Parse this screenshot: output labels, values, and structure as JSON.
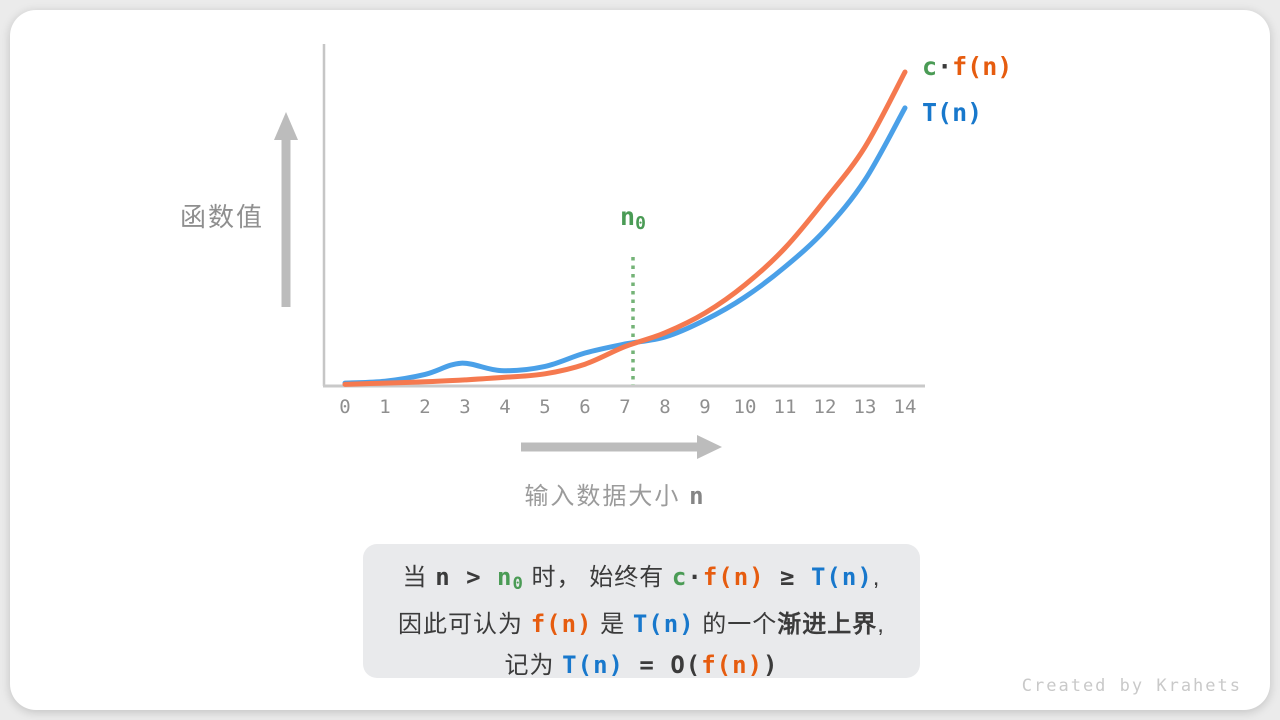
{
  "colors": {
    "orange": "#f5794f",
    "blue": "#4aa0e8",
    "text_orange": "#e65c0f",
    "text_blue": "#1878cc",
    "green": "#4a9b55",
    "n0_line": "#74b377",
    "axis_gray": "#c6c6c6",
    "arrow_gray": "#bcbcbc",
    "label_gray": "#8f8f8f",
    "dark_text": "#3b3b3b",
    "caption_bg": "#e9eaec",
    "watermark_gray": "#c9c9c9"
  },
  "chart_data": {
    "type": "line",
    "title": "",
    "ylabel": "函数值",
    "xlabel_segments": [
      [
        "输入数据大小 ",
        "xl"
      ],
      [
        "n",
        "xn"
      ]
    ],
    "x_ticks": [
      "0",
      "1",
      "2",
      "3",
      "4",
      "5",
      "6",
      "7",
      "8",
      "9",
      "10",
      "11",
      "12",
      "13",
      "14"
    ],
    "xlim": [
      0,
      14
    ],
    "ylim": [
      0,
      10.6
    ],
    "grid": false,
    "legend_position": "right-of-curve-ends",
    "series": [
      {
        "name": "c·f(n)",
        "name_segments": [
          [
            "c",
            "g"
          ],
          [
            "·",
            "m"
          ],
          [
            "f(n)",
            "o"
          ]
        ],
        "color_key": "orange",
        "x": [
          0,
          1,
          2,
          3,
          4,
          5,
          6,
          7,
          8,
          9,
          10,
          11,
          12,
          13,
          14
        ],
        "values": [
          0.02,
          0.06,
          0.1,
          0.16,
          0.24,
          0.35,
          0.65,
          1.2,
          1.63,
          2.25,
          3.13,
          4.28,
          5.78,
          7.44,
          9.78
        ]
      },
      {
        "name": "T(n)",
        "name_segments": [
          [
            "T(n)",
            "b"
          ]
        ],
        "color_key": "blue",
        "x": [
          0,
          1,
          2,
          2.9,
          3.9,
          5,
          6,
          7,
          8,
          9,
          10,
          11,
          12,
          13,
          14
        ],
        "values": [
          0.06,
          0.12,
          0.33,
          0.68,
          0.45,
          0.58,
          1.0,
          1.28,
          1.5,
          2.03,
          2.75,
          3.69,
          4.84,
          6.41,
          8.66
        ]
      }
    ],
    "annotation": {
      "n0": 7.2,
      "line_top_value": 4.0,
      "label_segments": [
        [
          "n",
          "g"
        ],
        [
          "0",
          "gs"
        ]
      ]
    }
  },
  "caption": {
    "lines": [
      [
        [
          "当 ",
          "t"
        ],
        [
          "n",
          "m"
        ],
        [
          " > ",
          "m"
        ],
        [
          "n",
          "g"
        ],
        [
          "0",
          "gs"
        ],
        [
          " 时， ",
          "t"
        ],
        [
          "始终有 ",
          "t"
        ],
        [
          "c",
          "g"
        ],
        [
          "·",
          "m"
        ],
        [
          "f(n)",
          "o"
        ],
        [
          " ≥ ",
          "m"
        ],
        [
          "T(n)",
          "b"
        ],
        [
          ",",
          "t"
        ]
      ],
      [
        [
          "因此可认为 ",
          "t"
        ],
        [
          "f(n)",
          "o"
        ],
        [
          " 是 ",
          "t"
        ],
        [
          "T(n)",
          "b"
        ],
        [
          " 的一个",
          "t"
        ],
        [
          "渐进上界",
          "tb"
        ],
        [
          ",",
          "t"
        ]
      ],
      [
        [
          "记为 ",
          "t"
        ],
        [
          "T(n)",
          "b"
        ],
        [
          " = ",
          "m"
        ],
        [
          "O(",
          "m"
        ],
        [
          "f(n)",
          "o"
        ],
        [
          ")",
          "m"
        ]
      ]
    ]
  },
  "watermark": "Created by Krahets"
}
